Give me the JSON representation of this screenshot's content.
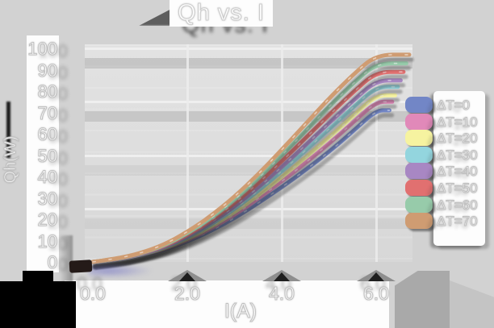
{
  "window": {
    "background": "#d2d2d2"
  },
  "colors": {
    "page_background": "#d2d2d2",
    "plot_background": "#dddddd",
    "label_text": "#ffffff",
    "label_outline": "#c0c0c0",
    "shadow": "#3a3a3a",
    "label_strip": "#fdfdfd"
  },
  "chart_data": {
    "type": "line",
    "title": "Qh vs. I",
    "xlabel": "I(A)",
    "ylabel": "Qh(W)",
    "xlim": [
      0,
      6.5
    ],
    "ylim": [
      0,
      100
    ],
    "grid": "on",
    "legend_position": "right",
    "x_ticks": {
      "values": [
        0,
        2,
        4,
        6
      ],
      "labels": [
        "0.0",
        "2.0",
        "4.0",
        "6.0"
      ]
    },
    "y_ticks": {
      "values": [
        0,
        10,
        20,
        30,
        40,
        50,
        60,
        70,
        80,
        90,
        100
      ],
      "labels": [
        "0",
        "10",
        "20",
        "30",
        "40",
        "50",
        "60",
        "70",
        "80",
        "90",
        "100"
      ]
    },
    "x": [
      0,
      0.5,
      1,
      1.5,
      2,
      2.5,
      3,
      3.5,
      4,
      4.5,
      5,
      5.5,
      6
    ],
    "series": [
      {
        "name": "ΔT=0",
        "color": "#7286c6",
        "values": [
          0,
          1.0,
          3.0,
          5.5,
          9.5,
          14.5,
          20.5,
          27.5,
          35.0,
          43.0,
          51.5,
          61.0,
          71
        ]
      },
      {
        "name": "ΔT=10",
        "color": "#e189b9",
        "values": [
          0,
          1.1,
          3.2,
          5.9,
          10.2,
          15.6,
          22.0,
          29.6,
          37.7,
          46.3,
          55.3,
          65.1,
          75
        ]
      },
      {
        "name": "ΔT=20",
        "color": "#f6f3a0",
        "values": [
          0,
          1.1,
          3.3,
          6.2,
          10.7,
          16.4,
          23.2,
          31.1,
          39.7,
          48.8,
          58.2,
          68.1,
          78
        ]
      },
      {
        "name": "ΔT=30",
        "color": "#93d5de",
        "values": [
          0,
          1.2,
          3.4,
          6.6,
          11.4,
          17.5,
          24.7,
          33.2,
          42.4,
          52.1,
          62.1,
          72.2,
          82
        ]
      },
      {
        "name": "ΔT=40",
        "color": "#a887c3",
        "values": [
          0,
          1.3,
          3.5,
          6.8,
          11.9,
          18.3,
          25.9,
          34.8,
          44.4,
          54.6,
          65.0,
          75.3,
          85
        ]
      },
      {
        "name": "ΔT=50",
        "color": "#e17070",
        "values": [
          0,
          1.3,
          3.7,
          7.2,
          12.6,
          19.3,
          27.4,
          36.8,
          47.1,
          57.9,
          68.8,
          79.3,
          89
        ]
      },
      {
        "name": "ΔT=60",
        "color": "#97cbaa",
        "values": [
          0,
          1.4,
          3.8,
          7.6,
          13.3,
          20.4,
          29.0,
          38.9,
          49.8,
          61.2,
          72.7,
          83.4,
          93
        ]
      },
      {
        "name": "ΔT=70",
        "color": "#cf9c72",
        "values": [
          0,
          1.5,
          4.0,
          8.0,
          14.0,
          21.5,
          30.5,
          41.0,
          52.5,
          64.5,
          76.5,
          87.5,
          97
        ]
      }
    ]
  }
}
